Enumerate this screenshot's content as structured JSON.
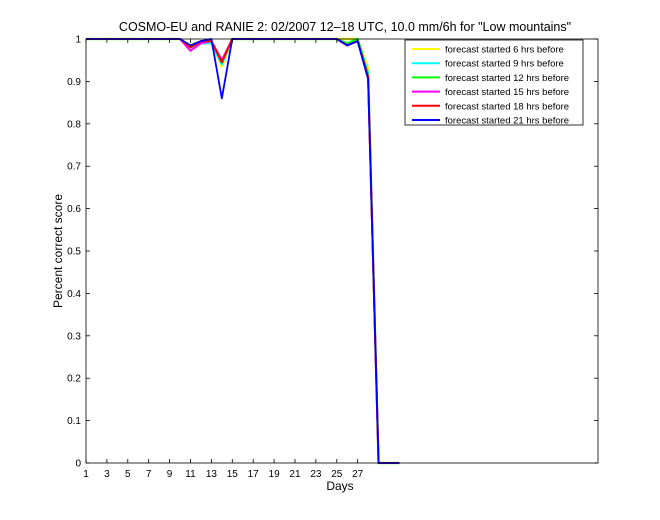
{
  "chart_data": {
    "type": "line",
    "title": "COSMO-EU and RANIE 2: 02/2007 12–18 UTC, 10.0 mm/6h for \"Low mountains\"",
    "xlabel": "Days",
    "ylabel": "Percent correct score",
    "xlim": [
      1,
      50
    ],
    "ylim": [
      0,
      1
    ],
    "xticks": [
      1,
      3,
      5,
      7,
      9,
      11,
      13,
      15,
      17,
      19,
      21,
      23,
      25,
      27
    ],
    "yticks": [
      0,
      0.1,
      0.2,
      0.3,
      0.4,
      0.5,
      0.6,
      0.7,
      0.8,
      0.9,
      1
    ],
    "grid": false,
    "legend_position": "top-right",
    "x": [
      1,
      2,
      3,
      4,
      5,
      6,
      7,
      8,
      9,
      10,
      11,
      12,
      13,
      14,
      15,
      16,
      17,
      18,
      19,
      20,
      21,
      22,
      23,
      24,
      25,
      26,
      27,
      28,
      29,
      30,
      31
    ],
    "series": [
      {
        "name": "forecast started 6 hrs before",
        "color": "#ffff00",
        "values": [
          1,
          1,
          1,
          1,
          1,
          1,
          1,
          1,
          1,
          1,
          0.985,
          0.995,
          0.995,
          0.935,
          1,
          1,
          1,
          1,
          1,
          1,
          1,
          1,
          1,
          1,
          1,
          1,
          1,
          0.93,
          0,
          0,
          0
        ]
      },
      {
        "name": "forecast started 9 hrs before",
        "color": "#00ffff",
        "values": [
          1,
          1,
          1,
          1,
          1,
          1,
          1,
          1,
          1,
          1,
          0.98,
          0.99,
          0.99,
          0.94,
          1,
          1,
          1,
          1,
          1,
          1,
          1,
          1,
          1,
          1,
          1,
          0.99,
          1,
          0.92,
          0,
          0,
          0
        ]
      },
      {
        "name": "forecast started 12 hrs before",
        "color": "#00ff00",
        "values": [
          1,
          1,
          1,
          1,
          1,
          1,
          1,
          1,
          1,
          1,
          0.98,
          0.995,
          0.995,
          0.945,
          1,
          1,
          1,
          1,
          1,
          1,
          1,
          1,
          1,
          1,
          1,
          0.99,
          1,
          0.915,
          0,
          0,
          0
        ]
      },
      {
        "name": "forecast started 15 hrs before",
        "color": "#ff00ff",
        "values": [
          1,
          1,
          1,
          1,
          1,
          1,
          1,
          1,
          1,
          1,
          0.972,
          0.99,
          0.995,
          0.95,
          1,
          1,
          1,
          1,
          1,
          1,
          1,
          1,
          1,
          1,
          1,
          0.985,
          0.995,
          0.91,
          0,
          0,
          0
        ]
      },
      {
        "name": "forecast started 18 hrs before",
        "color": "#ff0000",
        "values": [
          1,
          1,
          1,
          1,
          1,
          1,
          1,
          1,
          1,
          1,
          0.98,
          0.995,
          0.995,
          0.945,
          1,
          1,
          1,
          1,
          1,
          1,
          1,
          1,
          1,
          1,
          1,
          0.985,
          0.995,
          0.91,
          0,
          0,
          0
        ]
      },
      {
        "name": "forecast started 21 hrs before",
        "color": "#0000ff",
        "values": [
          1,
          1,
          1,
          1,
          1,
          1,
          1,
          1,
          1,
          1,
          0.985,
          0.995,
          1,
          0.86,
          1,
          1,
          1,
          1,
          1,
          1,
          1,
          1,
          1,
          1,
          1,
          0.985,
          0.995,
          0.905,
          0,
          0,
          0
        ]
      }
    ]
  }
}
